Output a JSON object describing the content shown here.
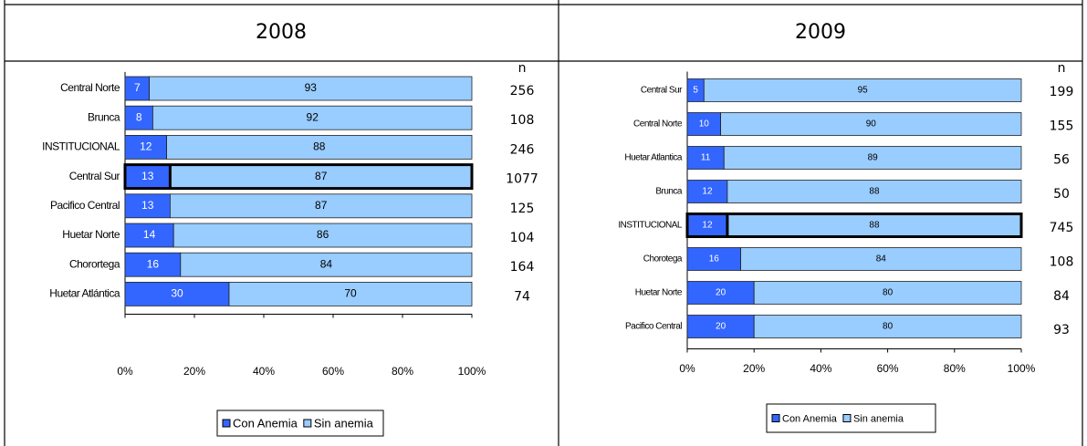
{
  "chart_data": [
    {
      "type": "stacked_barh",
      "title": "2008",
      "categories": [
        "Central Norte",
        "Brunca",
        "INSTITUCIONAL",
        "Central Sur",
        "Pacifico Central",
        "Huetar Norte",
        "Chorortega",
        "Huetar Atlántica"
      ],
      "series": [
        {
          "name": "Con Anemia",
          "color": "#3366ff",
          "values": [
            7,
            8,
            12,
            13,
            13,
            14,
            16,
            30
          ]
        },
        {
          "name": "Sin anemia",
          "color": "#99ccff",
          "values": [
            93,
            92,
            88,
            87,
            87,
            86,
            84,
            70
          ]
        }
      ],
      "n_label": "n",
      "n": [
        256,
        108,
        246,
        1077,
        125,
        104,
        164,
        74
      ],
      "highlight": 3,
      "xlim": [
        0,
        100
      ],
      "xticks": [
        {
          "value": 0,
          "label": "0%"
        },
        {
          "value": 20,
          "label": "20%"
        },
        {
          "value": 40,
          "label": "40%"
        },
        {
          "value": 60,
          "label": "60%"
        },
        {
          "value": 80,
          "label": "80%"
        },
        {
          "value": 100,
          "label": "100%"
        }
      ],
      "legend": "bottom"
    },
    {
      "type": "stacked_barh",
      "title": "2009",
      "categories": [
        "Central Sur",
        "Central Norte",
        "Huetar Atlantica",
        "Brunca",
        "INSTITUCIONAL",
        "Chorotega",
        "Huetar Norte",
        "Pacifico Central"
      ],
      "series": [
        {
          "name": "Con Anemia",
          "color": "#3366ff",
          "values": [
            5,
            10,
            11,
            12,
            12,
            16,
            20,
            20
          ]
        },
        {
          "name": "Sin anemia",
          "color": "#99ccff",
          "values": [
            95,
            90,
            89,
            88,
            88,
            84,
            80,
            80
          ]
        }
      ],
      "n_label": "n",
      "n": [
        199,
        155,
        56,
        50,
        745,
        108,
        84,
        93
      ],
      "highlight": 4,
      "xlim": [
        0,
        100
      ],
      "xticks": [
        {
          "value": 0,
          "label": "0%"
        },
        {
          "value": 20,
          "label": "20%"
        },
        {
          "value": 40,
          "label": "40%"
        },
        {
          "value": 60,
          "label": "60%"
        },
        {
          "value": 80,
          "label": "80%"
        },
        {
          "value": 100,
          "label": "100%"
        }
      ],
      "legend": "bottom"
    }
  ]
}
